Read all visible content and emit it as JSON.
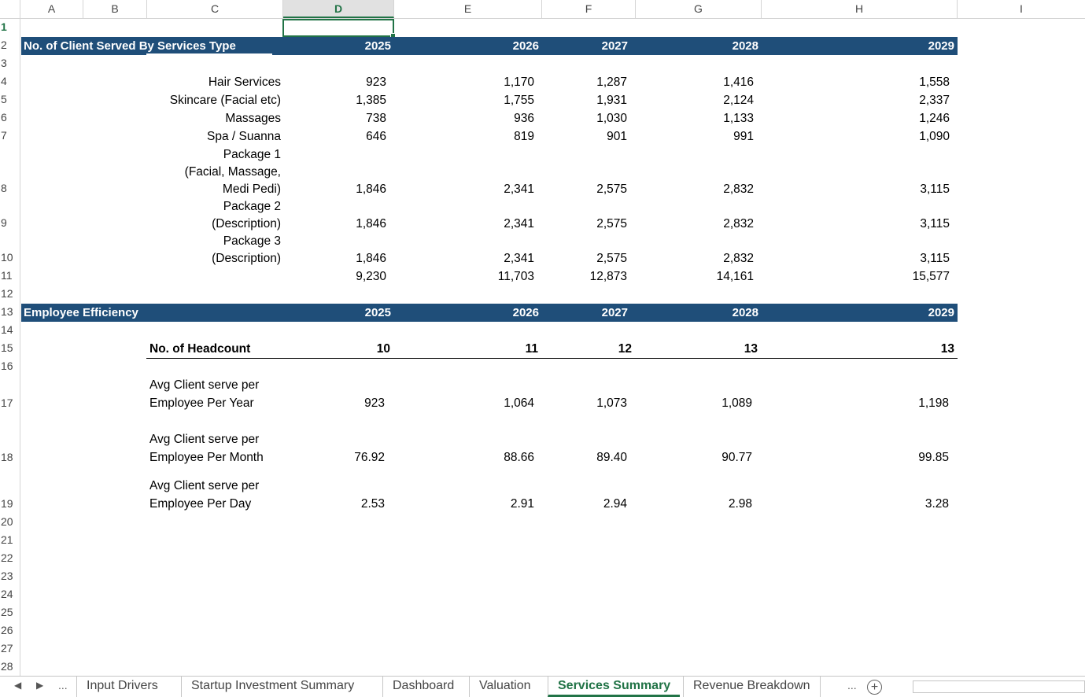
{
  "columns": [
    "A",
    "B",
    "C",
    "D",
    "E",
    "F",
    "G",
    "H",
    "I"
  ],
  "selected_column": "D",
  "rows": [
    "1",
    "2",
    "3",
    "4",
    "5",
    "6",
    "7",
    "8",
    "9",
    "10",
    "11",
    "12",
    "13",
    "14",
    "15",
    "16",
    "17",
    "18",
    "19",
    "20",
    "21",
    "22",
    "23",
    "24",
    "25",
    "26",
    "27",
    "28"
  ],
  "section1": {
    "title": "No. of Client Served By Services Type",
    "years": [
      "2025",
      "2026",
      "2027",
      "2028",
      "2029"
    ],
    "items": [
      {
        "label": "Hair Services",
        "values": [
          "923",
          "1,170",
          "1,287",
          "1,416",
          "1,558"
        ]
      },
      {
        "label": "Skincare (Facial etc)",
        "values": [
          "1,385",
          "1,755",
          "1,931",
          "2,124",
          "2,337"
        ]
      },
      {
        "label": "Massages",
        "values": [
          "738",
          "936",
          "1,030",
          "1,133",
          "1,246"
        ]
      },
      {
        "label": "Spa / Suanna",
        "values": [
          "646",
          "819",
          "901",
          "991",
          "1,090"
        ]
      },
      {
        "label_lines": [
          "Package 1",
          "(Facial, Massage,",
          "Medi Pedi)"
        ],
        "values": [
          "1,846",
          "2,341",
          "2,575",
          "2,832",
          "3,115"
        ]
      },
      {
        "label_lines": [
          "Package 2",
          "(Description)"
        ],
        "values": [
          "1,846",
          "2,341",
          "2,575",
          "2,832",
          "3,115"
        ]
      },
      {
        "label_lines": [
          "Package 3",
          "(Description)"
        ],
        "values": [
          "1,846",
          "2,341",
          "2,575",
          "2,832",
          "3,115"
        ]
      }
    ],
    "totals": [
      "9,230",
      "11,703",
      "12,873",
      "14,161",
      "15,577"
    ]
  },
  "section2": {
    "title": "Employee Efficiency",
    "years": [
      "2025",
      "2026",
      "2027",
      "2028",
      "2029"
    ],
    "headcount": {
      "label": "No. of Headcount",
      "values": [
        "10",
        "11",
        "12",
        "13",
        "13"
      ]
    },
    "metrics": [
      {
        "label_lines": [
          "Avg Client serve per",
          "Employee Per Year"
        ],
        "values": [
          "923",
          "1,064",
          "1,073",
          "1,089",
          "1,198"
        ]
      },
      {
        "label_lines": [
          "Avg Client serve per",
          "Employee Per Month"
        ],
        "values": [
          "76.92",
          "88.66",
          "89.40",
          "90.77",
          "99.85"
        ]
      },
      {
        "label_lines": [
          "Avg Client serve per",
          "Employee Per Day"
        ],
        "values": [
          "2.53",
          "2.91",
          "2.94",
          "2.98",
          "3.28"
        ]
      }
    ]
  },
  "sheet_tabs": [
    "Input Drivers",
    "Startup Investment Summary",
    "Dashboard",
    "Valuation",
    "Services Summary",
    "Revenue Breakdown"
  ],
  "active_tab": "Services Summary",
  "tab_nav": {
    "prev": "◀",
    "next": "▶",
    "more": "...",
    "add": "+"
  },
  "colors": {
    "band": "#1f4e79",
    "accent": "#217346"
  }
}
